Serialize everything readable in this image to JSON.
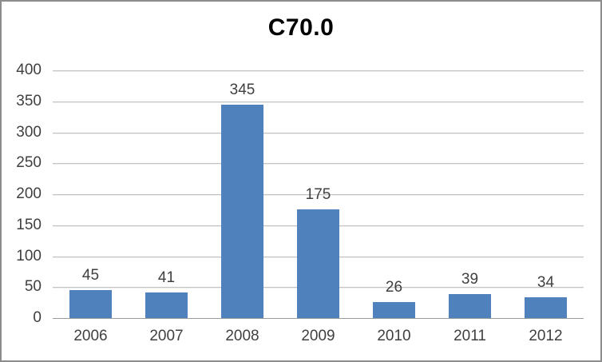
{
  "chart_data": {
    "type": "bar",
    "title": "C70.0",
    "categories": [
      "2006",
      "2007",
      "2008",
      "2009",
      "2010",
      "2011",
      "2012"
    ],
    "values": [
      45,
      41,
      345,
      175,
      26,
      39,
      34
    ],
    "value_labels": [
      "45",
      "41",
      "345",
      "175",
      "26",
      "39",
      "34"
    ],
    "y_tick_labels": [
      "0",
      "50",
      "100",
      "150",
      "200",
      "250",
      "300",
      "350",
      "400"
    ],
    "xlabel": "",
    "ylabel": "",
    "ylim": [
      0,
      400
    ],
    "ytick_step": 50,
    "grid": true,
    "legend_position": "none",
    "colors": {
      "bar": "#4F81BD",
      "gridline": "#C3C3C3",
      "axis_line": "#9A9A9A",
      "tick_text": "#404040",
      "value_text": "#404040",
      "title_text": "#000000",
      "frame_border": "#8C8C8C",
      "background": "#FFFFFF"
    }
  }
}
